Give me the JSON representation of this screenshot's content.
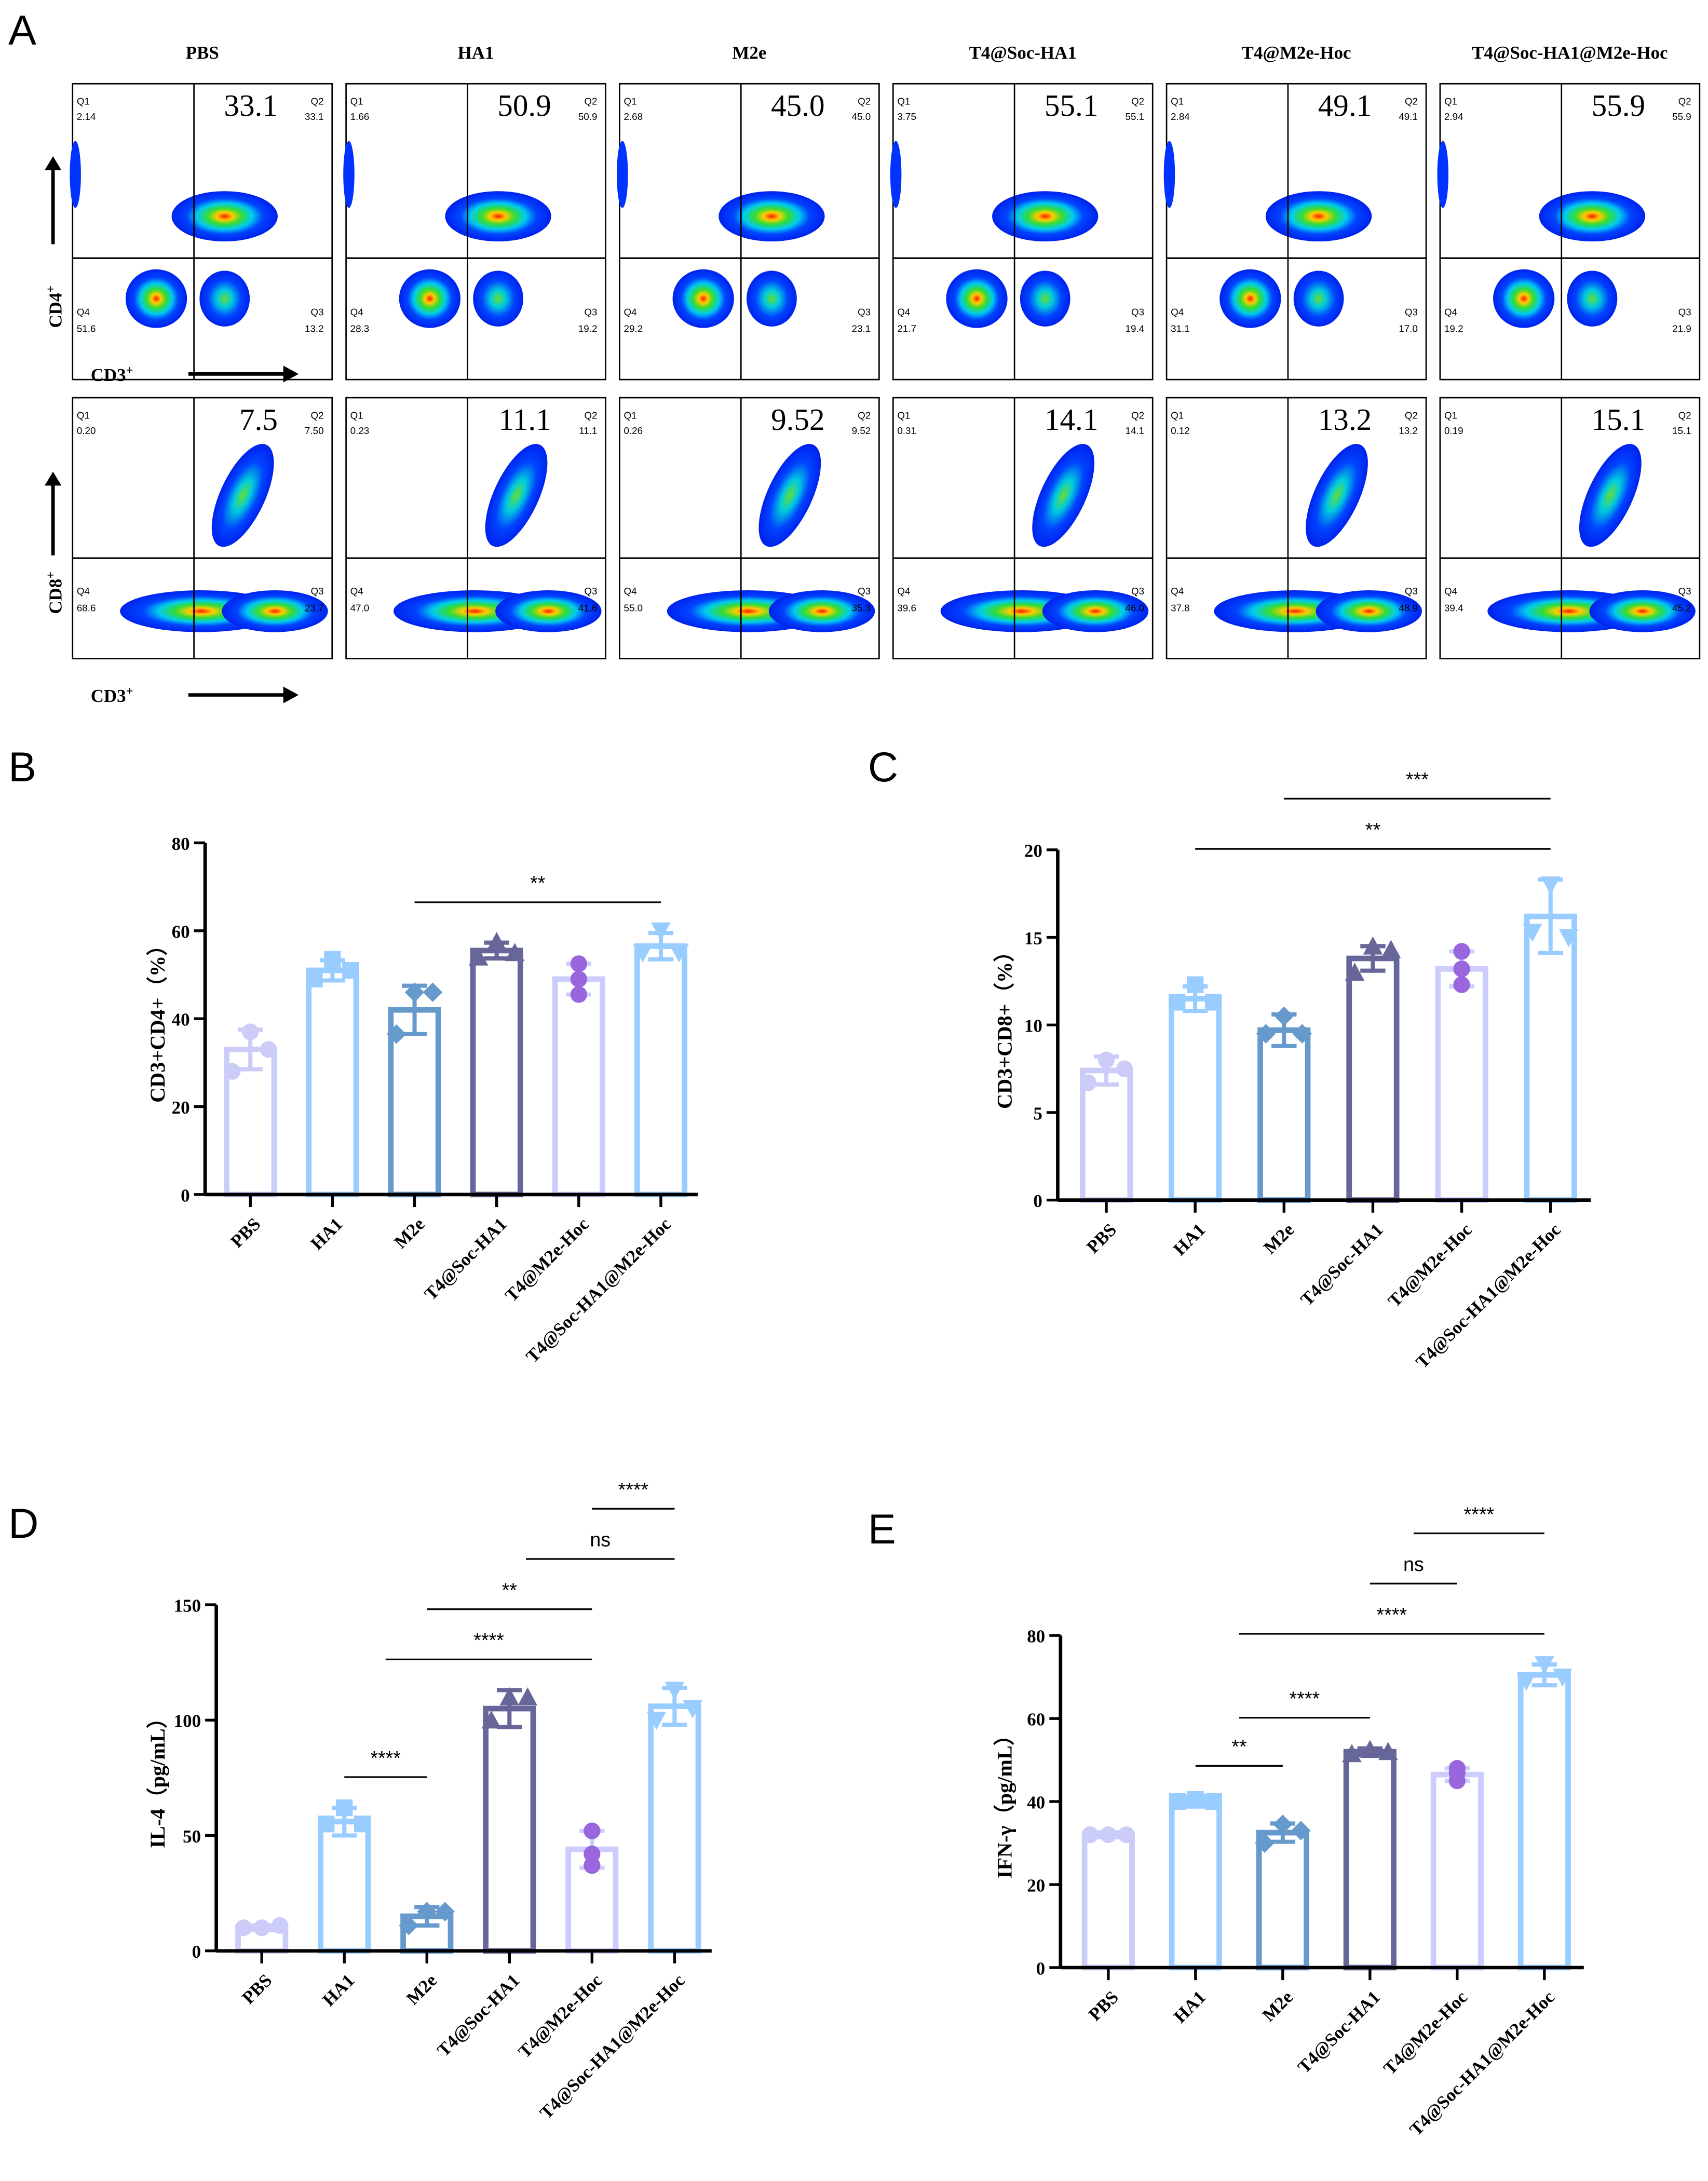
{
  "colors": {
    "PBS": "#ccccf8",
    "HA1": "#99ccff",
    "M2e": "#6699cc",
    "T4@Soc-HA1": "#666699",
    "T4@M2e-Hoc": "#ccccff",
    "T4@Soc-HA1@M2e-Hoc": "#99ccff",
    "T4@M2e-Hoc_points": "#9966dd"
  },
  "panel_a": {
    "label": "A",
    "groups": [
      "PBS",
      "HA1",
      "M2e",
      "T4@Soc-HA1",
      "T4@M2e-Hoc",
      "T4@Soc-HA1@M2e-Hoc"
    ],
    "rows": [
      {
        "y_label": "CD4",
        "y_sup": "+",
        "x_label": "CD3",
        "x_sup": "+",
        "plots": [
          {
            "big": "33.1",
            "Q1": "2.14",
            "Q2": "33.1",
            "Q3": "13.2",
            "Q4": "51.6"
          },
          {
            "big": "50.9",
            "Q1": "1.66",
            "Q2": "50.9",
            "Q3": "19.2",
            "Q4": "28.3"
          },
          {
            "big": "45.0",
            "Q1": "2.68",
            "Q2": "45.0",
            "Q3": "23.1",
            "Q4": "29.2"
          },
          {
            "big": "55.1",
            "Q1": "3.75",
            "Q2": "55.1",
            "Q3": "19.4",
            "Q4": "21.7"
          },
          {
            "big": "49.1",
            "Q1": "2.84",
            "Q2": "49.1",
            "Q3": "17.0",
            "Q4": "31.1"
          },
          {
            "big": "55.9",
            "Q1": "2.94",
            "Q2": "55.9",
            "Q3": "21.9",
            "Q4": "19.2"
          }
        ]
      },
      {
        "y_label": "CD8",
        "y_sup": "+",
        "x_label": "CD3",
        "x_sup": "+",
        "plots": [
          {
            "big": "7.5",
            "Q1": "0.20",
            "Q2": "7.50",
            "Q3": "23.7",
            "Q4": "68.6"
          },
          {
            "big": "11.1",
            "Q1": "0.23",
            "Q2": "11.1",
            "Q3": "41.6",
            "Q4": "47.0"
          },
          {
            "big": "9.52",
            "Q1": "0.26",
            "Q2": "9.52",
            "Q3": "35.3",
            "Q4": "55.0"
          },
          {
            "big": "14.1",
            "Q1": "0.31",
            "Q2": "14.1",
            "Q3": "46.0",
            "Q4": "39.6"
          },
          {
            "big": "13.2",
            "Q1": "0.12",
            "Q2": "13.2",
            "Q3": "48.9",
            "Q4": "37.8"
          },
          {
            "big": "15.1",
            "Q1": "0.19",
            "Q2": "15.1",
            "Q3": "45.2",
            "Q4": "39.4"
          }
        ]
      }
    ],
    "quadrant_names": [
      "Q1",
      "Q2",
      "Q3",
      "Q4"
    ]
  },
  "chart_data": [
    {
      "panel": "B",
      "type": "bar",
      "ylabel": "CD3+CD4+（%）",
      "ylim": [
        0,
        80
      ],
      "yticks": [
        0,
        20,
        40,
        60,
        80
      ],
      "categories": [
        "PBS",
        "HA1",
        "M2e",
        "T4@Soc-HA1",
        "T4@M2e-Hoc",
        "T4@Soc-HA1@M2e-Hoc"
      ],
      "values": [
        33,
        51,
        42,
        55.5,
        49,
        56.5
      ],
      "errors": [
        4.5,
        2.3,
        5.5,
        1.8,
        3.5,
        3
      ],
      "points": [
        [
          37,
          33,
          28
        ],
        [
          53.5,
          51,
          49
        ],
        [
          46,
          46,
          36.5
        ],
        [
          57.5,
          55,
          54
        ],
        [
          52.5,
          49,
          45.5
        ],
        [
          60,
          55,
          55
        ]
      ],
      "significance": [
        {
          "from": 2,
          "to": 5,
          "label": "**"
        }
      ]
    },
    {
      "panel": "C",
      "type": "bar",
      "ylabel": "CD3+CD8+（%）",
      "ylim": [
        0,
        20
      ],
      "yticks": [
        0,
        5,
        10,
        15,
        20
      ],
      "categories": [
        "PBS",
        "HA1",
        "M2e",
        "T4@Soc-HA1",
        "T4@M2e-Hoc",
        "T4@Soc-HA1@M2e-Hoc"
      ],
      "values": [
        7.4,
        11.5,
        9.7,
        13.8,
        13.2,
        16.2
      ],
      "errors": [
        0.8,
        0.7,
        0.9,
        0.7,
        1.0,
        2.1
      ],
      "points": [
        [
          8,
          7.5,
          6.7
        ],
        [
          12.3,
          11.3,
          11.3
        ],
        [
          10.5,
          9.5,
          9.5
        ],
        [
          14.5,
          14.3,
          13
        ],
        [
          14.2,
          13.2,
          12.3
        ],
        [
          18,
          15,
          15.3
        ]
      ],
      "significance": [
        {
          "from": 1,
          "to": 5,
          "label": "**"
        },
        {
          "from": 2,
          "to": 5,
          "label": "***"
        }
      ]
    },
    {
      "panel": "D",
      "type": "bar",
      "ylabel": "IL-4（pg/mL）",
      "ylim": [
        0,
        150
      ],
      "yticks": [
        0,
        50,
        100,
        150
      ],
      "categories": [
        "PBS",
        "HA1",
        "M2e",
        "T4@Soc-HA1",
        "T4@M2e-Hoc",
        "T4@Soc-HA1@M2e-Hoc"
      ],
      "values": [
        10,
        56,
        15,
        105,
        44,
        106
      ],
      "errors": [
        1,
        6,
        4,
        8,
        8,
        8
      ],
      "points": [
        [
          10,
          11,
          10
        ],
        [
          62,
          55,
          55
        ],
        [
          17,
          17,
          11
        ],
        [
          110,
          110,
          100
        ],
        [
          52,
          42,
          37
        ],
        [
          113,
          105,
          100
        ]
      ],
      "significance": [
        {
          "from": 1,
          "to": 2,
          "label": "****"
        },
        {
          "from": 1.5,
          "to": 4,
          "label": "****"
        },
        {
          "from": 2,
          "to": 4,
          "label": "**"
        },
        {
          "from": 3.2,
          "to": 5,
          "label": "ns"
        },
        {
          "from": 4,
          "to": 5,
          "label": "****"
        }
      ]
    },
    {
      "panel": "E",
      "type": "bar",
      "ylabel": "IFN-γ（pg/mL）",
      "ylim": [
        0,
        80
      ],
      "yticks": [
        0,
        20,
        40,
        60,
        80
      ],
      "categories": [
        "PBS",
        "HA1",
        "M2e",
        "T4@Soc-HA1",
        "T4@M2e-Hoc",
        "T4@Soc-HA1@M2e-Hoc"
      ],
      "values": [
        32,
        40,
        32.5,
        52,
        46.5,
        70.5
      ],
      "errors": [
        0.6,
        1.2,
        2.2,
        0.8,
        1.5,
        2.5
      ],
      "points": [
        [
          32,
          32,
          32
        ],
        [
          40.5,
          40,
          40
        ],
        [
          34.5,
          33,
          30
        ],
        [
          52.5,
          52,
          51.5
        ],
        [
          48,
          47,
          45
        ],
        [
          73,
          70,
          69
        ]
      ],
      "significance": [
        {
          "from": 1,
          "to": 2,
          "label": "**"
        },
        {
          "from": 1.5,
          "to": 3,
          "label": "****"
        },
        {
          "from": 1.5,
          "to": 5,
          "label": "****"
        },
        {
          "from": 3,
          "to": 4,
          "label": "ns"
        },
        {
          "from": 3.5,
          "to": 5,
          "label": "****"
        }
      ]
    }
  ]
}
